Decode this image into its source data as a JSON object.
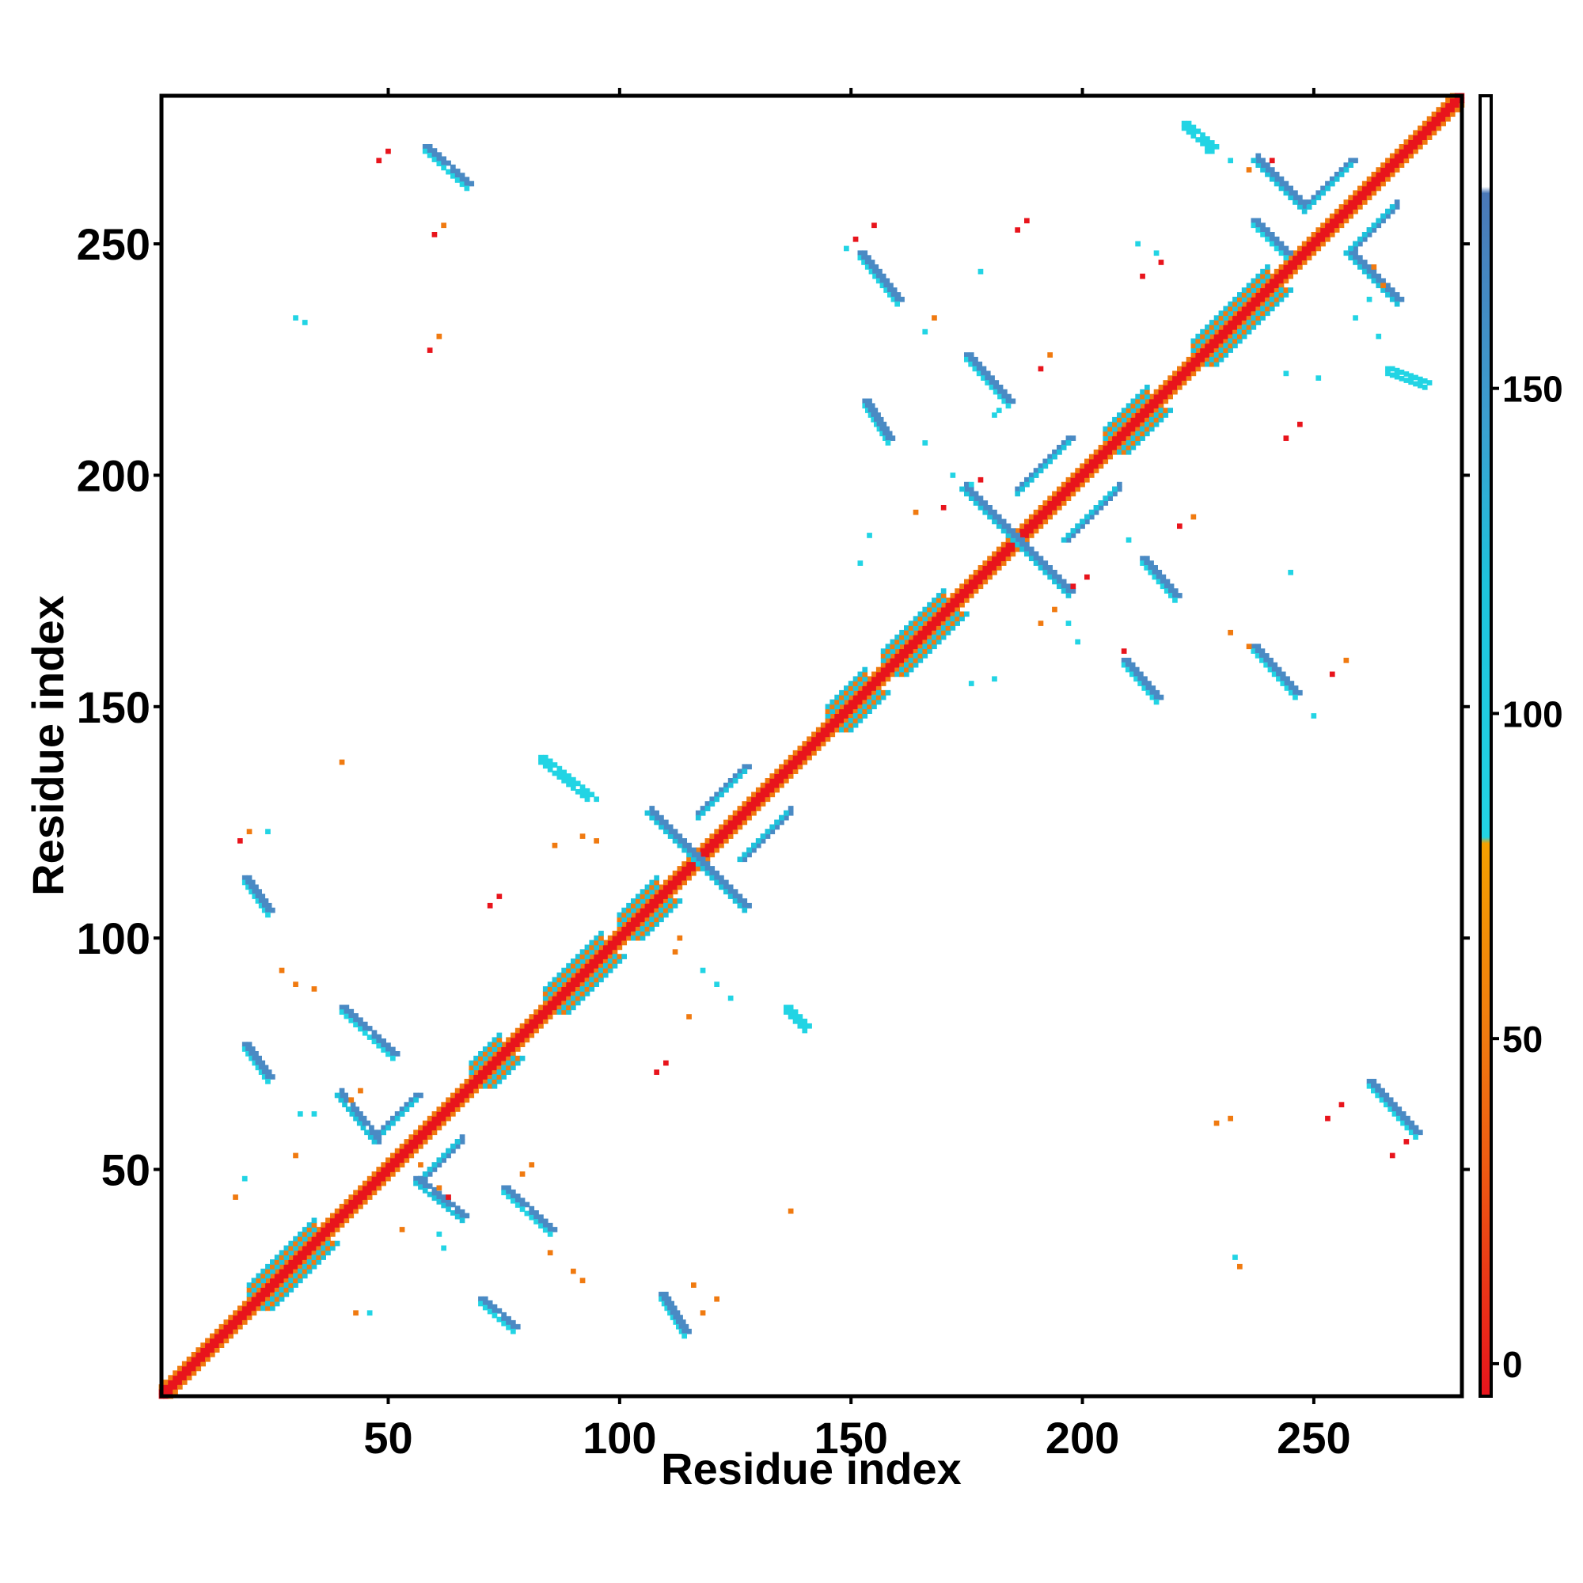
{
  "chart_data": {
    "type": "heatmap",
    "title": "",
    "xlabel": "Residue index",
    "ylabel": "Residue index",
    "xlim": [
      1,
      282
    ],
    "ylim": [
      1,
      282
    ],
    "x_ticks": [
      50,
      100,
      150,
      200,
      250
    ],
    "y_ticks": [
      50,
      100,
      150,
      200,
      250
    ],
    "colorbar": {
      "range": [
        -5,
        195
      ],
      "ticks": [
        0,
        50,
        100,
        150
      ],
      "segments": [
        {
          "from": -5,
          "to": 30,
          "color": "#e8141c"
        },
        {
          "from": 30,
          "to": 80,
          "color": "#f07a10"
        },
        {
          "from": 80,
          "to": 180,
          "color": "#1ec3dc"
        },
        {
          "from": 180,
          "to": 195,
          "color": "#ffffff"
        }
      ],
      "gradient_stops": [
        {
          "value": -5,
          "color": "#e8141c"
        },
        {
          "value": 30,
          "color": "#ee5a12"
        },
        {
          "value": 50,
          "color": "#f07a10"
        },
        {
          "value": 80,
          "color": "#f5a000"
        },
        {
          "value": 81,
          "color": "#22d4e4"
        },
        {
          "value": 120,
          "color": "#1ec3dc"
        },
        {
          "value": 145,
          "color": "#3b9fd0"
        },
        {
          "value": 180,
          "color": "#4a78b8"
        },
        {
          "value": 181,
          "color": "#ffffff"
        },
        {
          "value": 195,
          "color": "#ffffff"
        }
      ]
    },
    "colors": {
      "diagonal": "#e8141c",
      "near_diagonal": "#f07a10",
      "helix_band": "#1ec3dc",
      "antiparallel": "#4a8ac4",
      "parallel_tail": "#22d4e4",
      "sparse_red": "#e8141c",
      "sparse_orange": "#f07a10",
      "sparse_cyan": "#22d4e4"
    },
    "helix_segments": [
      [
        20,
        34
      ],
      [
        68,
        74
      ],
      [
        84,
        96
      ],
      [
        100,
        108
      ],
      [
        145,
        153
      ],
      [
        157,
        170
      ],
      [
        205,
        214
      ],
      [
        224,
        240
      ]
    ],
    "antiparallel_pairs": [
      {
        "i": [
          48,
          56
        ],
        "j": [
          58,
          66
        ]
      },
      {
        "i": [
          56,
          66
        ],
        "j": [
          48,
          40
        ]
      },
      {
        "i": [
          117,
          127
        ],
        "j": [
          127,
          137
        ]
      },
      {
        "i": [
          117,
          127
        ],
        "j": [
          117,
          107
        ]
      },
      {
        "i": [
          186,
          197
        ],
        "j": [
          197,
          208
        ]
      },
      {
        "i": [
          186,
          197
        ],
        "j": [
          186,
          175
        ]
      },
      {
        "i": [
          248,
          258
        ],
        "j": [
          258,
          268
        ]
      },
      {
        "i": [
          258,
          268
        ],
        "j": [
          248,
          238
        ]
      }
    ],
    "off_diagonal_strands": [
      {
        "x": [
          19,
          24
        ],
        "y": [
          77,
          70
        ],
        "color": "#4a8ac4"
      },
      {
        "x": [
          19,
          24
        ],
        "y": [
          113,
          106
        ],
        "color": "#4a8ac4"
      },
      {
        "x": [
          40,
          51
        ],
        "y": [
          85,
          75
        ],
        "color": "#4a8ac4"
      },
      {
        "x": [
          75,
          85
        ],
        "y": [
          46,
          37
        ],
        "color": "#4a8ac4"
      },
      {
        "x": [
          70,
          77
        ],
        "y": [
          22,
          16
        ],
        "color": "#4a8ac4"
      },
      {
        "x": [
          109,
          114
        ],
        "y": [
          23,
          15
        ],
        "color": "#4a8ac4"
      },
      {
        "x": [
          58,
          67
        ],
        "y": [
          271,
          263
        ],
        "color": "#4a8ac4"
      },
      {
        "x": [
          152,
          160
        ],
        "y": [
          248,
          238
        ],
        "color": "#4a8ac4"
      },
      {
        "x": [
          153,
          158
        ],
        "y": [
          216,
          208
        ],
        "color": "#4a8ac4"
      },
      {
        "x": [
          175,
          184
        ],
        "y": [
          226,
          216
        ],
        "color": "#4a8ac4"
      },
      {
        "x": [
          213,
          220
        ],
        "y": [
          182,
          174
        ],
        "color": "#4a8ac4"
      },
      {
        "x": [
          209,
          216
        ],
        "y": [
          160,
          152
        ],
        "color": "#4a8ac4"
      },
      {
        "x": [
          237,
          246
        ],
        "y": [
          163,
          153
        ],
        "color": "#4a8ac4"
      },
      {
        "x": [
          262,
          272
        ],
        "y": [
          69,
          58
        ],
        "color": "#4a8ac4"
      },
      {
        "x": [
          237,
          244
        ],
        "y": [
          255,
          248
        ],
        "color": "#4a8ac4"
      },
      {
        "x": [
          222,
          228
        ],
        "y": [
          276,
          271
        ],
        "color": "#22d4e4"
      },
      {
        "x": [
          83,
          93
        ],
        "y": [
          139,
          131
        ],
        "color": "#22d4e4"
      },
      {
        "x": [
          136,
          140
        ],
        "y": [
          85,
          81
        ],
        "color": "#22d4e4"
      },
      {
        "x": [
          266,
          274
        ],
        "y": [
          223,
          220
        ],
        "color": "#22d4e4"
      }
    ],
    "sparse_points": [
      {
        "x": 42,
        "y": 65,
        "c": "o"
      },
      {
        "x": 44,
        "y": 67,
        "c": "o"
      },
      {
        "x": 55,
        "y": 53,
        "c": "o"
      },
      {
        "x": 57,
        "y": 51,
        "c": "o"
      },
      {
        "x": 61,
        "y": 46,
        "c": "o"
      },
      {
        "x": 63,
        "y": 44,
        "c": "r"
      },
      {
        "x": 79,
        "y": 49,
        "c": "o"
      },
      {
        "x": 81,
        "y": 51,
        "c": "o"
      },
      {
        "x": 18,
        "y": 121,
        "c": "r"
      },
      {
        "x": 20,
        "y": 123,
        "c": "o"
      },
      {
        "x": 24,
        "y": 123,
        "c": "c"
      },
      {
        "x": 74,
        "y": 109,
        "c": "r"
      },
      {
        "x": 72,
        "y": 107,
        "c": "r"
      },
      {
        "x": 110,
        "y": 73,
        "c": "r"
      },
      {
        "x": 108,
        "y": 71,
        "c": "r"
      },
      {
        "x": 48,
        "y": 268,
        "c": "r"
      },
      {
        "x": 50,
        "y": 270,
        "c": "r"
      },
      {
        "x": 60,
        "y": 252,
        "c": "r"
      },
      {
        "x": 62,
        "y": 254,
        "c": "o"
      },
      {
        "x": 30,
        "y": 234,
        "c": "c"
      },
      {
        "x": 32,
        "y": 233,
        "c": "c"
      },
      {
        "x": 59,
        "y": 227,
        "c": "r"
      },
      {
        "x": 61,
        "y": 230,
        "c": "o"
      },
      {
        "x": 40,
        "y": 138,
        "c": "o"
      },
      {
        "x": 86,
        "y": 120,
        "c": "o"
      },
      {
        "x": 92,
        "y": 122,
        "c": "o"
      },
      {
        "x": 95,
        "y": 121,
        "c": "o"
      },
      {
        "x": 88,
        "y": 134,
        "c": "c"
      },
      {
        "x": 91,
        "y": 132,
        "c": "c"
      },
      {
        "x": 95,
        "y": 130,
        "c": "c"
      },
      {
        "x": 118,
        "y": 93,
        "c": "c"
      },
      {
        "x": 121,
        "y": 90,
        "c": "c"
      },
      {
        "x": 124,
        "y": 87,
        "c": "c"
      },
      {
        "x": 112,
        "y": 97,
        "c": "o"
      },
      {
        "x": 115,
        "y": 83,
        "c": "o"
      },
      {
        "x": 113,
        "y": 100,
        "c": "o"
      },
      {
        "x": 31,
        "y": 62,
        "c": "c"
      },
      {
        "x": 34,
        "y": 62,
        "c": "c"
      },
      {
        "x": 30,
        "y": 53,
        "c": "o"
      },
      {
        "x": 27,
        "y": 93,
        "c": "o"
      },
      {
        "x": 30,
        "y": 90,
        "c": "o"
      },
      {
        "x": 34,
        "y": 89,
        "c": "o"
      },
      {
        "x": 17,
        "y": 44,
        "c": "o"
      },
      {
        "x": 19,
        "y": 48,
        "c": "c"
      },
      {
        "x": 43,
        "y": 19,
        "c": "o"
      },
      {
        "x": 46,
        "y": 19,
        "c": "c"
      },
      {
        "x": 53,
        "y": 37,
        "c": "o"
      },
      {
        "x": 61,
        "y": 36,
        "c": "c"
      },
      {
        "x": 62,
        "y": 33,
        "c": "c"
      },
      {
        "x": 85,
        "y": 32,
        "c": "o"
      },
      {
        "x": 90,
        "y": 28,
        "c": "o"
      },
      {
        "x": 92,
        "y": 26,
        "c": "o"
      },
      {
        "x": 118,
        "y": 19,
        "c": "o"
      },
      {
        "x": 121,
        "y": 22,
        "c": "o"
      },
      {
        "x": 116,
        "y": 25,
        "c": "o"
      },
      {
        "x": 137,
        "y": 41,
        "c": "o"
      },
      {
        "x": 151,
        "y": 251,
        "c": "r"
      },
      {
        "x": 155,
        "y": 254,
        "c": "r"
      },
      {
        "x": 149,
        "y": 249,
        "c": "c"
      },
      {
        "x": 168,
        "y": 234,
        "c": "o"
      },
      {
        "x": 166,
        "y": 231,
        "c": "c"
      },
      {
        "x": 178,
        "y": 244,
        "c": "c"
      },
      {
        "x": 186,
        "y": 253,
        "c": "r"
      },
      {
        "x": 188,
        "y": 255,
        "c": "r"
      },
      {
        "x": 212,
        "y": 250,
        "c": "c"
      },
      {
        "x": 216,
        "y": 248,
        "c": "c"
      },
      {
        "x": 227,
        "y": 270,
        "c": "c"
      },
      {
        "x": 232,
        "y": 268,
        "c": "c"
      },
      {
        "x": 236,
        "y": 266,
        "c": "o"
      },
      {
        "x": 241,
        "y": 268,
        "c": "r"
      },
      {
        "x": 213,
        "y": 243,
        "c": "r"
      },
      {
        "x": 217,
        "y": 246,
        "c": "r"
      },
      {
        "x": 263,
        "y": 245,
        "c": "o"
      },
      {
        "x": 265,
        "y": 241,
        "c": "o"
      },
      {
        "x": 262,
        "y": 238,
        "c": "c"
      },
      {
        "x": 259,
        "y": 234,
        "c": "c"
      },
      {
        "x": 264,
        "y": 230,
        "c": "c"
      },
      {
        "x": 191,
        "y": 223,
        "c": "r"
      },
      {
        "x": 193,
        "y": 226,
        "c": "o"
      },
      {
        "x": 181,
        "y": 213,
        "c": "c"
      },
      {
        "x": 182,
        "y": 214,
        "c": "c"
      },
      {
        "x": 166,
        "y": 207,
        "c": "c"
      },
      {
        "x": 172,
        "y": 200,
        "c": "c"
      },
      {
        "x": 176,
        "y": 198,
        "c": "c"
      },
      {
        "x": 178,
        "y": 199,
        "c": "r"
      },
      {
        "x": 164,
        "y": 192,
        "c": "o"
      },
      {
        "x": 170,
        "y": 193,
        "c": "r"
      },
      {
        "x": 152,
        "y": 181,
        "c": "c"
      },
      {
        "x": 154,
        "y": 187,
        "c": "c"
      },
      {
        "x": 176,
        "y": 155,
        "c": "c"
      },
      {
        "x": 181,
        "y": 156,
        "c": "c"
      },
      {
        "x": 191,
        "y": 168,
        "c": "o"
      },
      {
        "x": 194,
        "y": 171,
        "c": "o"
      },
      {
        "x": 198,
        "y": 176,
        "c": "r"
      },
      {
        "x": 201,
        "y": 178,
        "c": "r"
      },
      {
        "x": 197,
        "y": 168,
        "c": "c"
      },
      {
        "x": 199,
        "y": 164,
        "c": "c"
      },
      {
        "x": 221,
        "y": 189,
        "c": "r"
      },
      {
        "x": 224,
        "y": 191,
        "c": "o"
      },
      {
        "x": 210,
        "y": 186,
        "c": "c"
      },
      {
        "x": 247,
        "y": 211,
        "c": "r"
      },
      {
        "x": 244,
        "y": 208,
        "c": "r"
      },
      {
        "x": 244,
        "y": 222,
        "c": "c"
      },
      {
        "x": 251,
        "y": 221,
        "c": "c"
      },
      {
        "x": 245,
        "y": 179,
        "c": "c"
      },
      {
        "x": 232,
        "y": 166,
        "c": "o"
      },
      {
        "x": 236,
        "y": 163,
        "c": "o"
      },
      {
        "x": 254,
        "y": 157,
        "c": "r"
      },
      {
        "x": 257,
        "y": 160,
        "c": "o"
      },
      {
        "x": 250,
        "y": 148,
        "c": "c"
      },
      {
        "x": 209,
        "y": 162,
        "c": "r"
      },
      {
        "x": 229,
        "y": 60,
        "c": "o"
      },
      {
        "x": 232,
        "y": 61,
        "c": "o"
      },
      {
        "x": 253,
        "y": 61,
        "c": "r"
      },
      {
        "x": 256,
        "y": 64,
        "c": "r"
      },
      {
        "x": 267,
        "y": 53,
        "c": "r"
      },
      {
        "x": 270,
        "y": 56,
        "c": "r"
      },
      {
        "x": 233,
        "y": 31,
        "c": "c"
      },
      {
        "x": 234,
        "y": 29,
        "c": "o"
      }
    ]
  }
}
